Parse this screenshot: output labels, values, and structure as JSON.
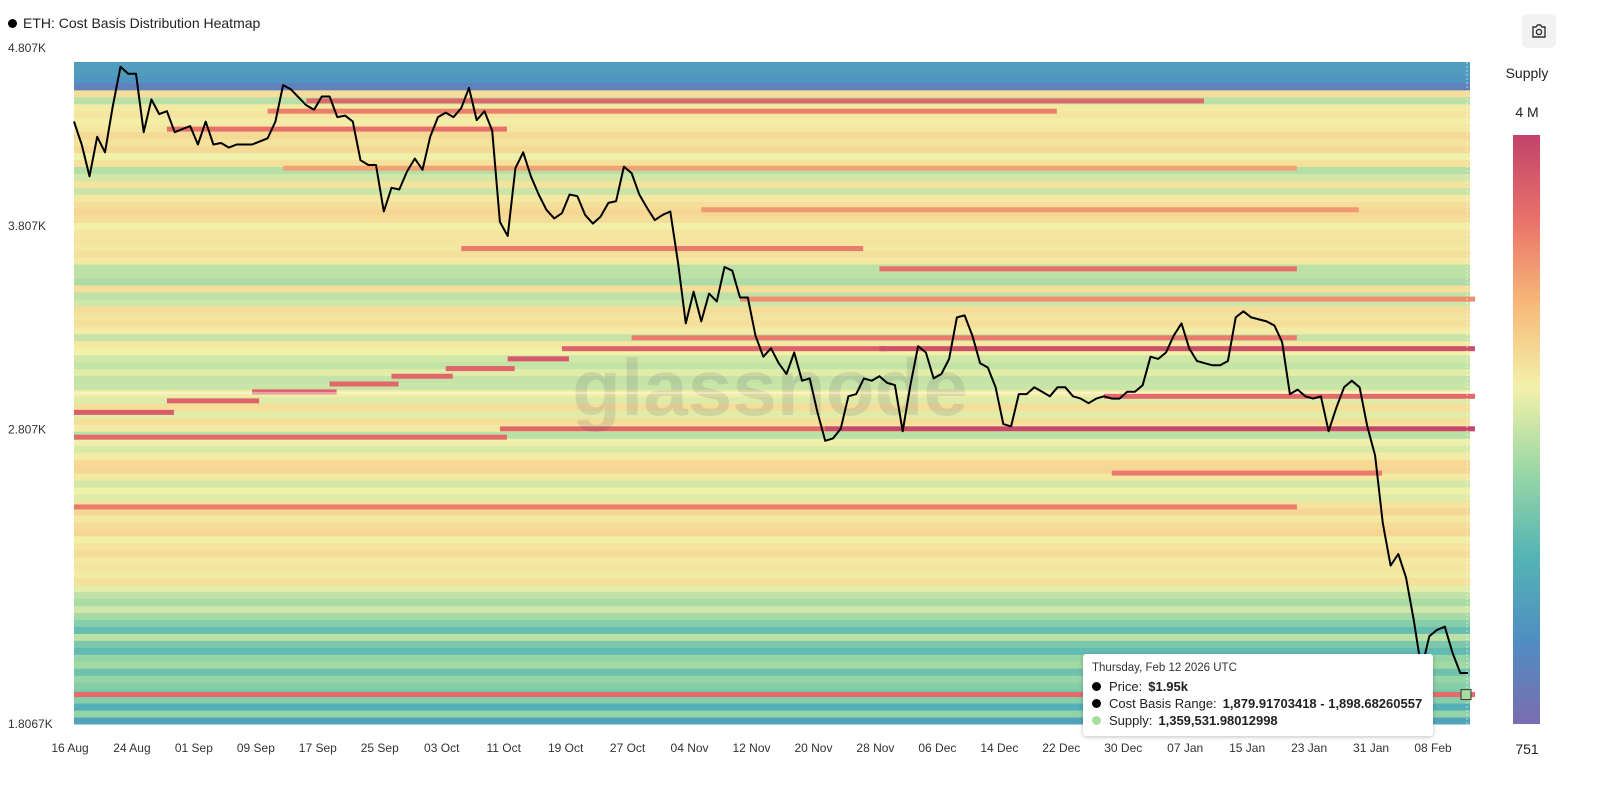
{
  "title": "ETH: Cost Basis Distribution Heatmap",
  "watermark": "glassnode",
  "toolbar": {
    "screenshot_icon": "camera-icon"
  },
  "colorbar": {
    "label": "Supply",
    "max_label": "4 M",
    "min_label": "751",
    "min": 751,
    "max": 4000000,
    "scale": "log",
    "colors": [
      "#7a6db0",
      "#4f8ec2",
      "#55b4b4",
      "#9ad7a5",
      "#f3f1aa",
      "#f7b878",
      "#e9716a",
      "#c1436a"
    ]
  },
  "tooltip": {
    "date": "Thursday, Feb 12 2026 UTC",
    "price_label": "Price:",
    "price_value": "$1.95k",
    "range_label": "Cost Basis Range:",
    "range_value": "1,879.91703418 - 1,898.68260557",
    "supply_label": "Supply:",
    "supply_value": "1,359,531.98012998",
    "price_color": "#000000",
    "range_color": "#000000",
    "supply_color": "#a8dba0"
  },
  "chart_data": {
    "type": "heatmap",
    "title": "ETH: Cost Basis Distribution Heatmap",
    "y_scale": "log",
    "ylim": [
      1806.7,
      4865
    ],
    "xlim": [
      "2025-08-16",
      "2026-02-12"
    ],
    "y_ticks": [
      {
        "value": 4807,
        "label": "4.807K"
      },
      {
        "value": 3807,
        "label": "3.807K"
      },
      {
        "value": 2807,
        "label": "2.807K"
      },
      {
        "value": 1806.7,
        "label": "1.8067K"
      }
    ],
    "x_ticks": [
      {
        "date": "2025-08-16",
        "label": "16 Aug"
      },
      {
        "date": "2025-08-24",
        "label": "24 Aug"
      },
      {
        "date": "2025-09-01",
        "label": "01 Sep"
      },
      {
        "date": "2025-09-09",
        "label": "09 Sep"
      },
      {
        "date": "2025-09-17",
        "label": "17 Sep"
      },
      {
        "date": "2025-09-25",
        "label": "25 Sep"
      },
      {
        "date": "2025-10-03",
        "label": "03 Oct"
      },
      {
        "date": "2025-10-11",
        "label": "11 Oct"
      },
      {
        "date": "2025-10-19",
        "label": "19 Oct"
      },
      {
        "date": "2025-10-27",
        "label": "27 Oct"
      },
      {
        "date": "2025-11-04",
        "label": "04 Nov"
      },
      {
        "date": "2025-11-12",
        "label": "12 Nov"
      },
      {
        "date": "2025-11-20",
        "label": "20 Nov"
      },
      {
        "date": "2025-11-28",
        "label": "28 Nov"
      },
      {
        "date": "2025-12-06",
        "label": "06 Dec"
      },
      {
        "date": "2025-12-14",
        "label": "14 Dec"
      },
      {
        "date": "2025-12-22",
        "label": "22 Dec"
      },
      {
        "date": "2025-12-30",
        "label": "30 Dec"
      },
      {
        "date": "2026-01-07",
        "label": "07 Jan"
      },
      {
        "date": "2026-01-15",
        "label": "15 Jan"
      },
      {
        "date": "2026-01-23",
        "label": "23 Jan"
      },
      {
        "date": "2026-01-31",
        "label": "31 Jan"
      },
      {
        "date": "2026-02-08",
        "label": "08 Feb"
      }
    ],
    "price_series": {
      "name": "Price",
      "color": "#000000",
      "points": [
        [
          "2025-08-16",
          4450
        ],
        [
          "2025-08-17",
          4300
        ],
        [
          "2025-08-18",
          4100
        ],
        [
          "2025-08-19",
          4350
        ],
        [
          "2025-08-20",
          4250
        ],
        [
          "2025-08-21",
          4550
        ],
        [
          "2025-08-22",
          4830
        ],
        [
          "2025-08-23",
          4780
        ],
        [
          "2025-08-24",
          4780
        ],
        [
          "2025-08-25",
          4380
        ],
        [
          "2025-08-26",
          4600
        ],
        [
          "2025-08-27",
          4500
        ],
        [
          "2025-08-28",
          4520
        ],
        [
          "2025-08-29",
          4380
        ],
        [
          "2025-08-30",
          4400
        ],
        [
          "2025-08-31",
          4420
        ],
        [
          "2025-09-01",
          4300
        ],
        [
          "2025-09-02",
          4450
        ],
        [
          "2025-09-03",
          4300
        ],
        [
          "2025-09-04",
          4310
        ],
        [
          "2025-09-05",
          4280
        ],
        [
          "2025-09-06",
          4300
        ],
        [
          "2025-09-08",
          4300
        ],
        [
          "2025-09-10",
          4340
        ],
        [
          "2025-09-11",
          4450
        ],
        [
          "2025-09-12",
          4700
        ],
        [
          "2025-09-13",
          4670
        ],
        [
          "2025-09-15",
          4560
        ],
        [
          "2025-09-16",
          4530
        ],
        [
          "2025-09-17",
          4620
        ],
        [
          "2025-09-18",
          4620
        ],
        [
          "2025-09-19",
          4480
        ],
        [
          "2025-09-20",
          4490
        ],
        [
          "2025-09-21",
          4450
        ],
        [
          "2025-09-22",
          4200
        ],
        [
          "2025-09-23",
          4170
        ],
        [
          "2025-09-24",
          4170
        ],
        [
          "2025-09-25",
          3890
        ],
        [
          "2025-09-26",
          4030
        ],
        [
          "2025-09-27",
          4020
        ],
        [
          "2025-09-28",
          4130
        ],
        [
          "2025-09-29",
          4210
        ],
        [
          "2025-09-30",
          4140
        ],
        [
          "2025-10-01",
          4350
        ],
        [
          "2025-10-02",
          4480
        ],
        [
          "2025-10-03",
          4510
        ],
        [
          "2025-10-04",
          4480
        ],
        [
          "2025-10-05",
          4540
        ],
        [
          "2025-10-06",
          4680
        ],
        [
          "2025-10-07",
          4460
        ],
        [
          "2025-10-08",
          4520
        ],
        [
          "2025-10-09",
          4390
        ],
        [
          "2025-10-10",
          3830
        ],
        [
          "2025-10-11",
          3750
        ],
        [
          "2025-10-12",
          4150
        ],
        [
          "2025-10-13",
          4250
        ],
        [
          "2025-10-14",
          4100
        ],
        [
          "2025-10-15",
          3990
        ],
        [
          "2025-10-16",
          3900
        ],
        [
          "2025-10-17",
          3850
        ],
        [
          "2025-10-18",
          3880
        ],
        [
          "2025-10-19",
          3990
        ],
        [
          "2025-10-20",
          3980
        ],
        [
          "2025-10-21",
          3870
        ],
        [
          "2025-10-22",
          3820
        ],
        [
          "2025-10-23",
          3860
        ],
        [
          "2025-10-24",
          3940
        ],
        [
          "2025-10-25",
          3950
        ],
        [
          "2025-10-26",
          4160
        ],
        [
          "2025-10-27",
          4120
        ],
        [
          "2025-10-28",
          3990
        ],
        [
          "2025-10-29",
          3910
        ],
        [
          "2025-10-30",
          3840
        ],
        [
          "2025-10-31",
          3870
        ],
        [
          "2025-11-01",
          3890
        ],
        [
          "2025-11-02",
          3600
        ],
        [
          "2025-11-03",
          3290
        ],
        [
          "2025-11-04",
          3450
        ],
        [
          "2025-11-05",
          3300
        ],
        [
          "2025-11-06",
          3440
        ],
        [
          "2025-11-07",
          3400
        ],
        [
          "2025-11-08",
          3580
        ],
        [
          "2025-11-09",
          3560
        ],
        [
          "2025-11-10",
          3420
        ],
        [
          "2025-11-11",
          3420
        ],
        [
          "2025-11-12",
          3230
        ],
        [
          "2025-11-13",
          3130
        ],
        [
          "2025-11-14",
          3170
        ],
        [
          "2025-11-15",
          3100
        ],
        [
          "2025-11-16",
          3050
        ],
        [
          "2025-11-17",
          3150
        ],
        [
          "2025-11-18",
          3020
        ],
        [
          "2025-11-19",
          3030
        ],
        [
          "2025-11-20",
          2880
        ],
        [
          "2025-11-21",
          2760
        ],
        [
          "2025-11-22",
          2770
        ],
        [
          "2025-11-23",
          2810
        ],
        [
          "2025-11-24",
          2950
        ],
        [
          "2025-11-25",
          2960
        ],
        [
          "2025-11-26",
          3030
        ],
        [
          "2025-11-27",
          3020
        ],
        [
          "2025-11-28",
          3040
        ],
        [
          "2025-11-29",
          3010
        ],
        [
          "2025-11-30",
          3000
        ],
        [
          "2025-12-01",
          2800
        ],
        [
          "2025-12-02",
          3000
        ],
        [
          "2025-12-03",
          3180
        ],
        [
          "2025-12-04",
          3150
        ],
        [
          "2025-12-05",
          3030
        ],
        [
          "2025-12-06",
          3050
        ],
        [
          "2025-12-07",
          3120
        ],
        [
          "2025-12-08",
          3320
        ],
        [
          "2025-12-09",
          3330
        ],
        [
          "2025-12-10",
          3230
        ],
        [
          "2025-12-11",
          3100
        ],
        [
          "2025-12-12",
          3080
        ],
        [
          "2025-12-13",
          2990
        ],
        [
          "2025-12-14",
          2830
        ],
        [
          "2025-12-15",
          2820
        ],
        [
          "2025-12-16",
          2960
        ],
        [
          "2025-12-17",
          2960
        ],
        [
          "2025-12-18",
          2990
        ],
        [
          "2025-12-19",
          2970
        ],
        [
          "2025-12-20",
          2950
        ],
        [
          "2025-12-21",
          2990
        ],
        [
          "2025-12-22",
          2990
        ],
        [
          "2025-12-23",
          2950
        ],
        [
          "2025-12-24",
          2940
        ],
        [
          "2025-12-25",
          2920
        ],
        [
          "2025-12-26",
          2940
        ],
        [
          "2025-12-27",
          2950
        ],
        [
          "2025-12-28",
          2940
        ],
        [
          "2025-12-29",
          2940
        ],
        [
          "2025-12-30",
          2970
        ],
        [
          "2025-12-31",
          2970
        ],
        [
          "2026-01-01",
          3000
        ],
        [
          "2026-01-02",
          3130
        ],
        [
          "2026-01-03",
          3120
        ],
        [
          "2026-01-04",
          3150
        ],
        [
          "2026-01-05",
          3230
        ],
        [
          "2026-01-06",
          3290
        ],
        [
          "2026-01-07",
          3170
        ],
        [
          "2026-01-08",
          3110
        ],
        [
          "2026-01-09",
          3100
        ],
        [
          "2026-01-10",
          3090
        ],
        [
          "2026-01-11",
          3090
        ],
        [
          "2026-01-12",
          3110
        ],
        [
          "2026-01-13",
          3320
        ],
        [
          "2026-01-14",
          3350
        ],
        [
          "2026-01-15",
          3320
        ],
        [
          "2026-01-16",
          3310
        ],
        [
          "2026-01-17",
          3300
        ],
        [
          "2026-01-18",
          3280
        ],
        [
          "2026-01-19",
          3200
        ],
        [
          "2026-01-20",
          2960
        ],
        [
          "2026-01-21",
          2980
        ],
        [
          "2026-01-22",
          2950
        ],
        [
          "2026-01-23",
          2940
        ],
        [
          "2026-01-24",
          2950
        ],
        [
          "2026-01-25",
          2800
        ],
        [
          "2026-01-26",
          2900
        ],
        [
          "2026-01-27",
          2990
        ],
        [
          "2026-01-28",
          3020
        ],
        [
          "2026-01-29",
          2990
        ],
        [
          "2026-01-30",
          2820
        ],
        [
          "2026-01-31",
          2700
        ],
        [
          "2026-02-01",
          2440
        ],
        [
          "2026-02-02",
          2290
        ],
        [
          "2026-02-03",
          2330
        ],
        [
          "2026-02-04",
          2250
        ],
        [
          "2026-02-05",
          2110
        ],
        [
          "2026-02-06",
          1960
        ],
        [
          "2026-02-07",
          2060
        ],
        [
          "2026-02-08",
          2080
        ],
        [
          "2026-02-09",
          2090
        ],
        [
          "2026-02-10",
          2010
        ],
        [
          "2026-02-11",
          1950
        ],
        [
          "2026-02-12",
          1950
        ]
      ]
    },
    "bands": [
      {
        "price": 4590,
        "start": "2025-09-15",
        "end": "2026-01-08",
        "supply": 1500000
      },
      {
        "price": 4520,
        "start": "2025-09-10",
        "end": "2025-12-20",
        "supply": 900000
      },
      {
        "price": 4400,
        "start": "2025-08-28",
        "end": "2025-10-10",
        "supply": 1200000
      },
      {
        "price": 4150,
        "start": "2025-09-12",
        "end": "2026-01-20",
        "supply": 500000
      },
      {
        "price": 3900,
        "start": "2025-11-05",
        "end": "2026-01-28",
        "supply": 600000
      },
      {
        "price": 3680,
        "start": "2025-10-05",
        "end": "2025-11-25",
        "supply": 1000000
      },
      {
        "price": 3570,
        "start": "2025-11-28",
        "end": "2026-01-20",
        "supply": 1200000
      },
      {
        "price": 3412,
        "start": "2025-11-10",
        "end": "2026-02-12",
        "supply": 700000
      },
      {
        "price": 3220,
        "start": "2025-10-27",
        "end": "2026-01-20",
        "supply": 1000000
      },
      {
        "price": 3168,
        "start": "2025-10-18",
        "end": "2025-11-28",
        "supply": 1800000
      },
      {
        "price": 3168,
        "start": "2025-11-28",
        "end": "2026-02-12",
        "supply": 2800000
      },
      {
        "price": 3120,
        "start": "2025-10-11",
        "end": "2025-10-18",
        "supply": 2200000
      },
      {
        "price": 3075,
        "start": "2025-10-03",
        "end": "2025-10-11",
        "supply": 1600000
      },
      {
        "price": 3040,
        "start": "2025-09-26",
        "end": "2025-10-03",
        "supply": 1500000
      },
      {
        "price": 3005,
        "start": "2025-09-18",
        "end": "2025-09-26",
        "supply": 1500000
      },
      {
        "price": 2970,
        "start": "2025-09-08",
        "end": "2025-09-18",
        "supply": 1600000
      },
      {
        "price": 2950,
        "start": "2025-12-27",
        "end": "2026-02-12",
        "supply": 1400000
      },
      {
        "price": 2930,
        "start": "2025-08-28",
        "end": "2025-09-08",
        "supply": 1600000
      },
      {
        "price": 2880,
        "start": "2025-08-16",
        "end": "2025-08-28",
        "supply": 2000000
      },
      {
        "price": 2810,
        "start": "2025-10-10",
        "end": "2025-11-21",
        "supply": 1500000
      },
      {
        "price": 2810,
        "start": "2025-11-21",
        "end": "2026-02-12",
        "supply": 3500000
      },
      {
        "price": 2775,
        "start": "2025-08-16",
        "end": "2025-10-10",
        "supply": 1400000
      },
      {
        "price": 2630,
        "start": "2025-12-28",
        "end": "2026-01-31",
        "supply": 1000000
      },
      {
        "price": 2500,
        "start": "2025-08-16",
        "end": "2026-01-20",
        "supply": 1000000
      },
      {
        "price": 1888,
        "start": "2025-08-16",
        "end": "2026-02-12",
        "supply": 1359532
      }
    ]
  }
}
